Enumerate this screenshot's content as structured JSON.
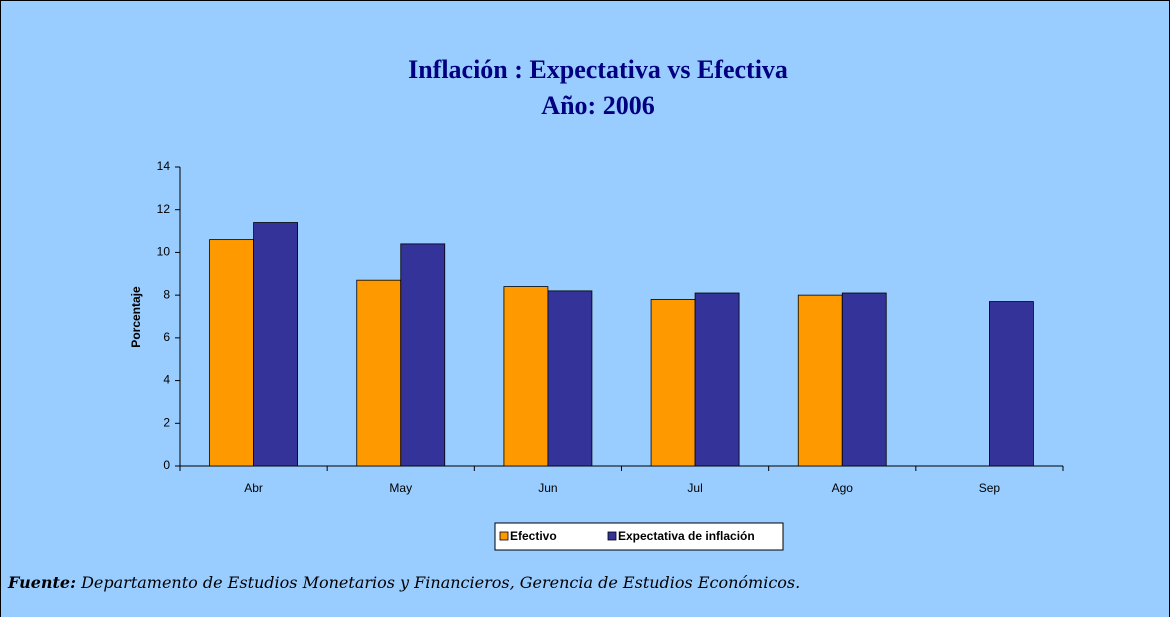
{
  "chart_data": {
    "type": "bar",
    "title": "Inflación : Expectativa vs Efectiva",
    "subtitle": "Año: 2006",
    "y_label": "Porcentaje",
    "categories": [
      "Abr",
      "May",
      "Jun",
      "Jul",
      "Ago",
      "Sep"
    ],
    "series": [
      {
        "name": "Efectivo",
        "color": "#ff9900",
        "values": [
          10.6,
          8.7,
          8.4,
          7.8,
          8.0,
          null
        ]
      },
      {
        "name": "Expectativa de inflación",
        "color": "#333399",
        "values": [
          11.4,
          10.4,
          8.2,
          8.1,
          8.1,
          7.7
        ]
      }
    ],
    "ylim": [
      0,
      14
    ],
    "yticks": [
      0,
      2,
      4,
      6,
      8,
      10,
      12,
      14
    ],
    "legend": "bottom",
    "source_label": "Fuente:",
    "source_text": "Departamento de Estudios Monetarios y Financieros, Gerencia de Estudios Económicos."
  }
}
